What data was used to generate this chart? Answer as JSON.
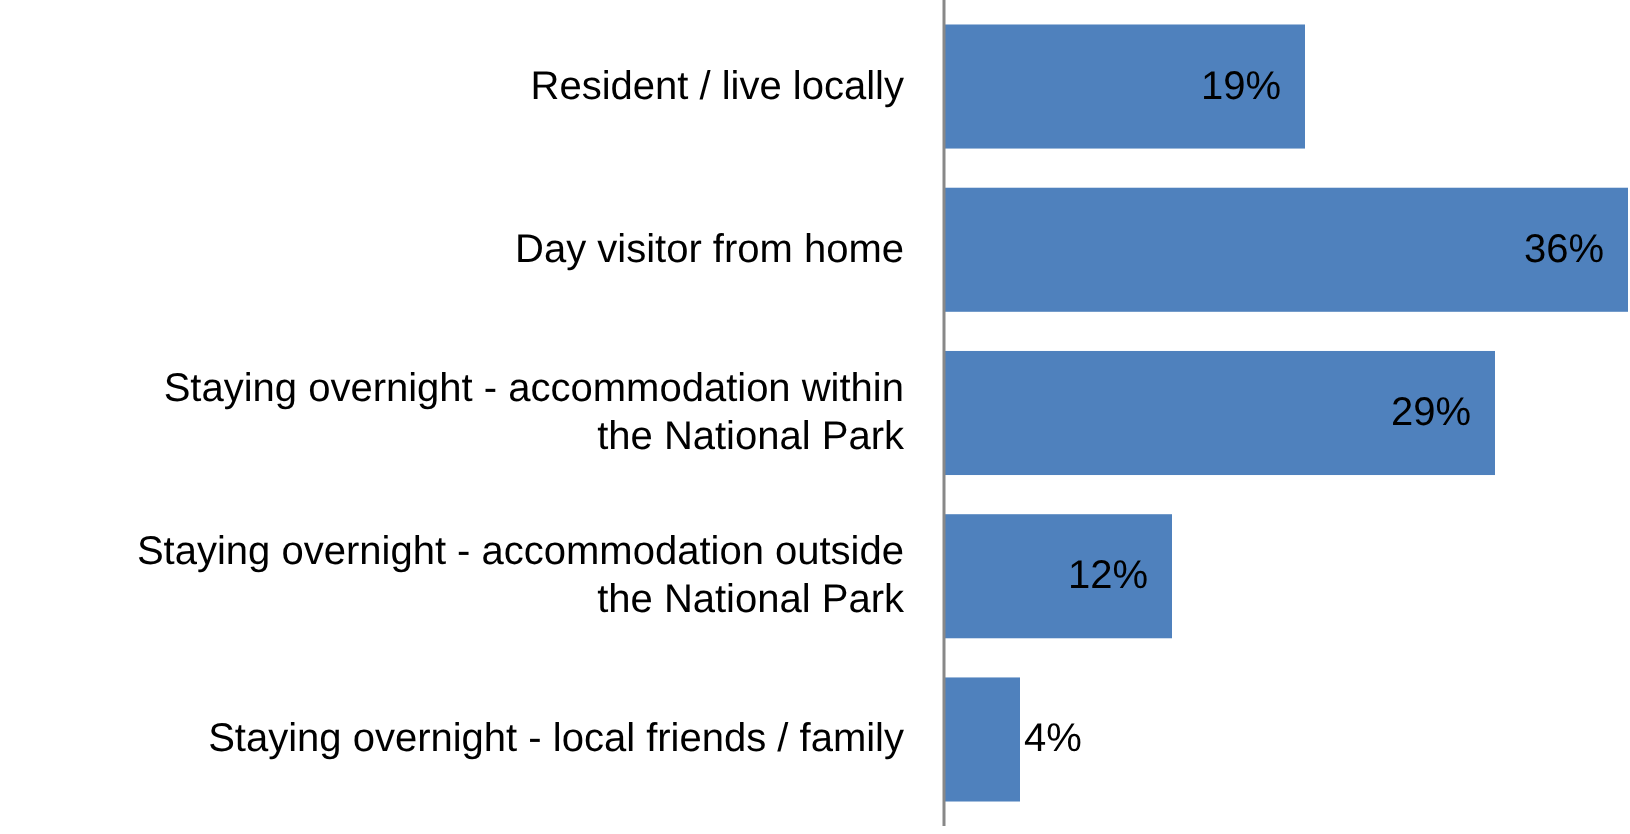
{
  "chart_data": {
    "type": "bar",
    "orientation": "horizontal",
    "categories": [
      "Resident / live locally",
      "Day visitor from home",
      "Staying overnight - accommodation within the National Park",
      "Staying overnight - accommodation outside the National Park",
      "Staying overnight - local friends / family"
    ],
    "values": [
      19,
      36,
      29,
      12,
      4
    ],
    "value_labels": [
      "19%",
      "36%",
      "29%",
      "12%",
      "4%"
    ],
    "color": "#4f81bd"
  }
}
